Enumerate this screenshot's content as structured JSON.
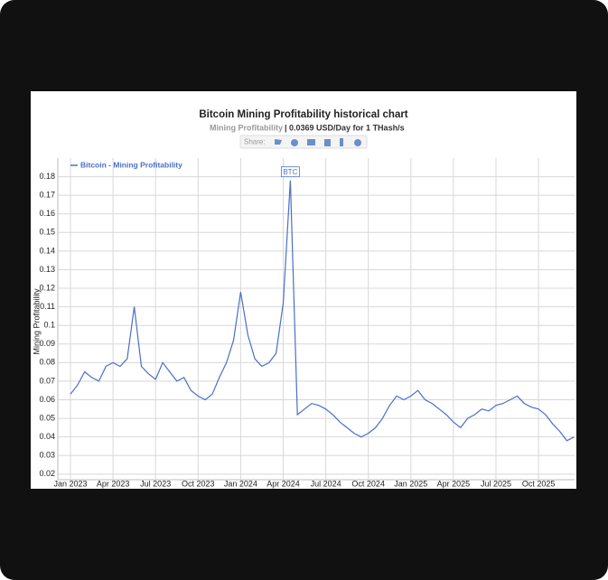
{
  "chart_data": {
    "type": "line",
    "title": "Bitcoin Mining Profitability historical chart",
    "subtitle_label": "Mining Profitability",
    "subtitle_value": "| 0.0369 USD/Day for 1 THash/s",
    "share_label": "Share:",
    "y_label": "Mining Profitability",
    "annotation": "BTC",
    "grid": true,
    "x": [
      "Jan 2023",
      null,
      null,
      null,
      null,
      null,
      "Apr 2023",
      null,
      null,
      null,
      null,
      null,
      "Jul 2023",
      null,
      null,
      null,
      null,
      null,
      "Oct 2023",
      null,
      null,
      null,
      null,
      null,
      "Jan 2024",
      null,
      null,
      null,
      null,
      null,
      "Apr 2024",
      null,
      null,
      null,
      null,
      null,
      "Jul 2024",
      null,
      null,
      null,
      null,
      null,
      "Oct 2024",
      null,
      null,
      null,
      null,
      null,
      "Jan 2025",
      null,
      null,
      null,
      null,
      null,
      "Apr 2025",
      null,
      null,
      null,
      null,
      null,
      "Jul 2025",
      null,
      null,
      null,
      null,
      null,
      "Oct 2025",
      null,
      null,
      null,
      null,
      null
    ],
    "series": [
      {
        "name": "Bitcoin - Mining Profitability",
        "color": "#4a6fc7",
        "values": [
          0.063,
          0.068,
          0.075,
          0.072,
          0.07,
          0.078,
          0.08,
          0.078,
          0.082,
          0.11,
          0.078,
          0.074,
          0.071,
          0.08,
          0.075,
          0.07,
          0.072,
          0.065,
          0.062,
          0.06,
          0.063,
          0.072,
          0.08,
          0.092,
          0.118,
          0.095,
          0.082,
          0.078,
          0.08,
          0.085,
          0.112,
          0.178,
          0.052,
          0.055,
          0.058,
          0.057,
          0.055,
          0.052,
          0.048,
          0.045,
          0.042,
          0.04,
          0.042,
          0.045,
          0.05,
          0.057,
          0.062,
          0.06,
          0.062,
          0.065,
          0.06,
          0.058,
          0.055,
          0.052,
          0.048,
          0.045,
          0.05,
          0.052,
          0.055,
          0.054,
          0.057,
          0.058,
          0.06,
          0.062,
          0.058,
          0.056,
          0.055,
          0.052,
          0.047,
          0.043,
          0.038,
          0.04
        ]
      }
    ],
    "ylim": [
      0.017,
      0.19
    ],
    "yticks": [
      0.02,
      0.03,
      0.04,
      0.05,
      0.06,
      0.07,
      0.08,
      0.09,
      0.1,
      0.11,
      0.12,
      0.13,
      0.14,
      0.15,
      0.16,
      0.17,
      0.18
    ]
  }
}
